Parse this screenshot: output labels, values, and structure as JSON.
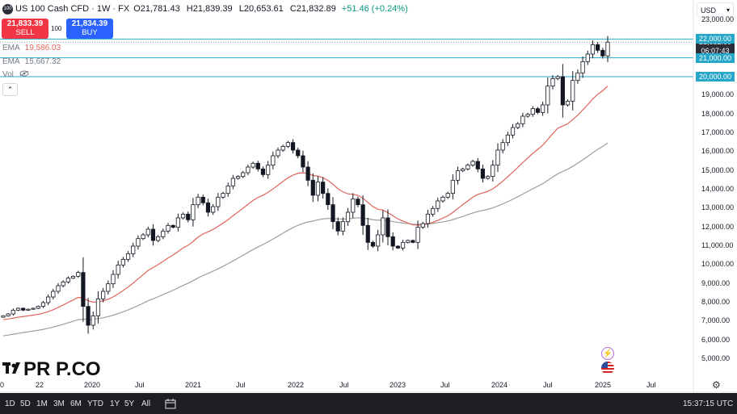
{
  "header": {
    "symbol_badge": "100",
    "title": "US 100 Cash CFD · 1W · FX",
    "open_key": "O",
    "open": "21,781.43",
    "high_key": "H",
    "high": "21,839.39",
    "low_key": "L",
    "low": "20,653.61",
    "close_key": "C",
    "close": "21,832.89",
    "change": "+51.46 (+0.24%)"
  },
  "trade": {
    "sell_price": "21,833.39",
    "sell_label": "SELL",
    "spread": "100",
    "buy_price": "21,834.39",
    "buy_label": "BUY"
  },
  "indicators": {
    "ema1_label": "EMA",
    "ema1_value": "19,586.03",
    "ema2_label": "EMA",
    "ema2_value": "15,667.32",
    "vol_label": "Vol"
  },
  "currency": "USD",
  "price_axis": {
    "ticks": [
      "23,000.00",
      "19,000.00",
      "18,000.00",
      "17,000.00",
      "16,000.00",
      "15,000.00",
      "14,000.00",
      "13,000.00",
      "12,000.00",
      "11,000.00",
      "10,000.00",
      "9,000.00",
      "8,000.00",
      "7,000.00",
      "6,000.00",
      "5,000.00"
    ],
    "levels": [
      "22,000.00",
      "21,000.00",
      "20,000.00"
    ],
    "current_price": "21,832.89",
    "countdown": "06:07:43"
  },
  "time_axis": [
    "20",
    "22",
    "2020",
    "Jul",
    "2021",
    "Jul",
    "2022",
    "Jul",
    "2023",
    "Jul",
    "2024",
    "Jul",
    "2025",
    "Jul"
  ],
  "bottom": {
    "timeframes": [
      "1D",
      "5D",
      "1M",
      "3M",
      "6M",
      "YTD",
      "1Y",
      "5Y",
      "All"
    ],
    "clock": "15:37:15 UTC"
  },
  "logo_text": "PR P.CO",
  "colors": {
    "up": "#089981",
    "down": "#f23645",
    "level_line": "#26a6c9",
    "ema_fast": "#e0645c",
    "ema_slow": "#9e9e9e",
    "candle": "#131722",
    "sell": "#f23645",
    "buy": "#2962ff"
  },
  "chart_data": {
    "type": "candlestick",
    "x_start": "2019-04",
    "x_end": "2025-01",
    "ylim": [
      4500,
      23500
    ],
    "horizontal_levels": [
      22000,
      21000,
      20000
    ],
    "close_series": [
      7300,
      7400,
      7600,
      7700,
      7600,
      7650,
      7700,
      7800,
      8000,
      8300,
      8600,
      8900,
      9100,
      9300,
      9400,
      9600,
      7800,
      6800,
      7300,
      8200,
      8600,
      9000,
      9500,
      10000,
      10300,
      10600,
      11000,
      11400,
      11600,
      11900,
      11300,
      11500,
      11800,
      12100,
      12000,
      12500,
      12700,
      12400,
      13200,
      13600,
      13300,
      12800,
      13100,
      13600,
      13800,
      14200,
      14600,
      14700,
      14900,
      15200,
      15400,
      15100,
      14800,
      15300,
      15800,
      16100,
      16300,
      16500,
      16100,
      15800,
      15200,
      14500,
      13700,
      14400,
      13800,
      13200,
      12300,
      11800,
      12300,
      12800,
      13500,
      13200,
      12100,
      11200,
      11000,
      11600,
      12500,
      11500,
      11000,
      10900,
      11200,
      11300,
      11200,
      12000,
      12200,
      12700,
      13000,
      13400,
      13600,
      13800,
      14500,
      15000,
      15100,
      15300,
      15500,
      15100,
      14600,
      14700,
      15300,
      16100,
      16500,
      16900,
      17300,
      17500,
      17900,
      18000,
      18300,
      18100,
      18500,
      19500,
      19900,
      20000,
      18500,
      18700,
      19800,
      20200,
      20800,
      21200,
      21700,
      21400,
      21100,
      21832
    ]
  }
}
